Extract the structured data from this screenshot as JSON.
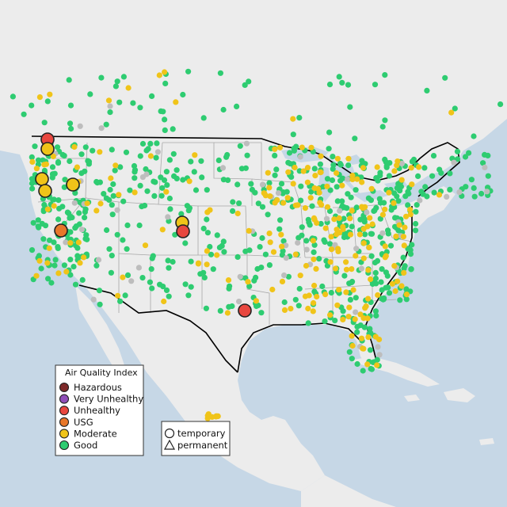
{
  "legend": {
    "title": "Air Quality Index",
    "categories": [
      {
        "label": "Hazardous",
        "color": "#7e2a2a"
      },
      {
        "label": "Very Unhealthy",
        "color": "#8f4fb8"
      },
      {
        "label": "Unhealthy",
        "color": "#e8473f"
      },
      {
        "label": "USG",
        "color": "#e8772a"
      },
      {
        "label": "Moderate",
        "color": "#f0c419"
      },
      {
        "label": "Good",
        "color": "#2ecc71"
      }
    ]
  },
  "shape_legend": {
    "temporary": "temporary",
    "permanent": "permanent"
  },
  "colors": {
    "water": "#c6d7e6",
    "land": "#ececec",
    "border": "#000000",
    "state_line": "#999999",
    "no_data": "#bdbdbd"
  }
}
